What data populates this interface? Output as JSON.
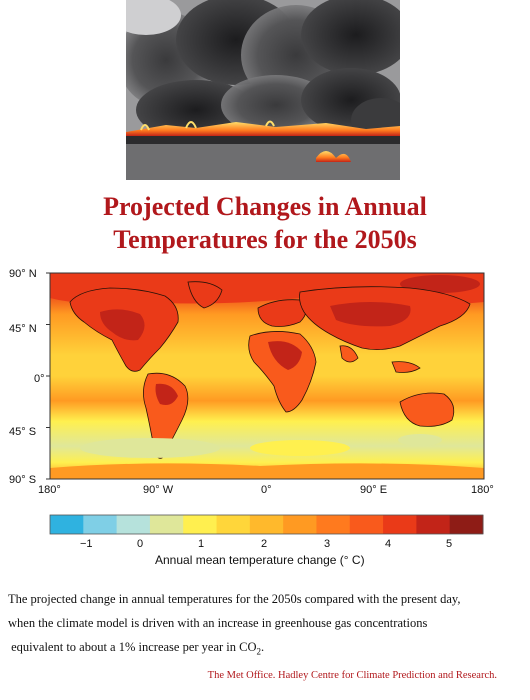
{
  "title": {
    "line1": "Projected Changes in Annual",
    "line2": "Temperatures for the 2050s"
  },
  "photo": {
    "icon": "burning-oil-smoke-photo"
  },
  "map": {
    "lat_labels": [
      "90° N",
      "45° N",
      "0°",
      "45° S",
      "90° S"
    ],
    "lon_labels": [
      "180°",
      "90° W",
      "0°",
      "90° E",
      "180°"
    ],
    "colorbar": {
      "tick_labels": [
        "−1",
        "0",
        "1",
        "2",
        "3",
        "4",
        "5"
      ],
      "label": "Annual mean temperature change (° C)",
      "colors": [
        "#2fb2e0",
        "#7fcfe6",
        "#b6e2dc",
        "#dfe79a",
        "#ffef4f",
        "#ffd63a",
        "#ffb92c",
        "#ff9a22",
        "#ff7a1e",
        "#f95a1c",
        "#ea3a18",
        "#c22418",
        "#8e1c16"
      ]
    },
    "colors": {
      "ocean_base": "#ffd23a",
      "warm": "#ff9a22",
      "hot": "#f95a1c",
      "hotter": "#ea3a18",
      "hottest": "#c22418",
      "cool": "#fff04f",
      "coolest": "#dfe79a",
      "coast": "#2b1208"
    }
  },
  "caption": {
    "line1": "The projected change in annual temperatures for the 2050s compared with the present day,",
    "line2": "when the climate model is driven with an increase in greenhouse gas concentrations",
    "line3_prefix": "equivalent to about a 1% increase per year in CO",
    "line3_sub": "2",
    "line3_suffix": "."
  },
  "credit": "The Met Office.  Hadley Centre for Climate Prediction and Research."
}
